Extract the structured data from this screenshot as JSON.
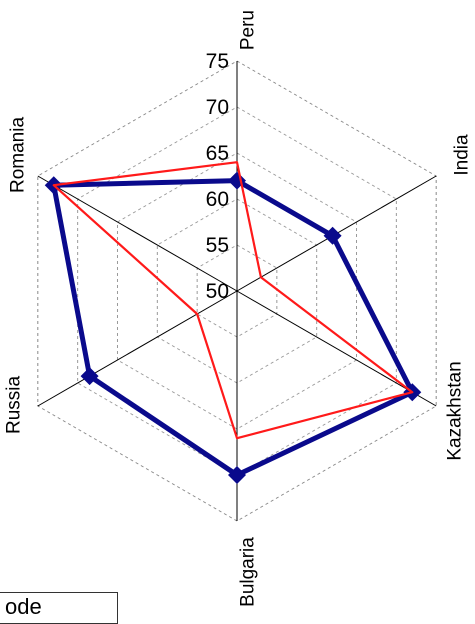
{
  "chart_data": {
    "type": "radar",
    "axes": [
      "Peru",
      "India",
      "Kazakhstan",
      "Bulgaria",
      "Russia",
      "Romania"
    ],
    "rlim": [
      50,
      75
    ],
    "r_ticks": [
      50,
      55,
      60,
      65,
      70,
      75
    ],
    "grid": true,
    "legend_placement": "bottom-left",
    "series": [
      {
        "values": [
          62,
          62,
          72,
          70,
          68.5,
          73
        ],
        "color": "#0a0a8c",
        "marker": "diamond"
      },
      {
        "values": [
          64,
          53,
          72,
          66,
          55,
          73
        ],
        "color": "#ff1a1a",
        "marker": "none"
      }
    ]
  },
  "legend": {
    "text": "ode"
  }
}
